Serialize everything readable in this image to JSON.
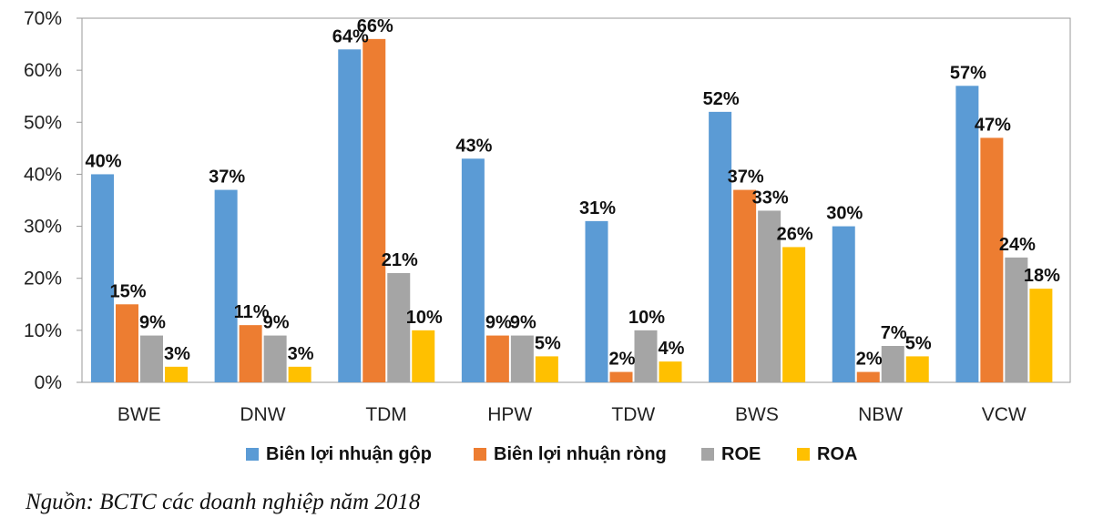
{
  "chart_data": {
    "type": "bar",
    "title": "",
    "xlabel": "",
    "ylabel": "",
    "ylim": [
      0,
      70
    ],
    "y_ticks": [
      "0%",
      "10%",
      "20%",
      "30%",
      "40%",
      "50%",
      "60%",
      "70%"
    ],
    "grid": false,
    "legend_position": "bottom",
    "categories": [
      "BWE",
      "DNW",
      "TDM",
      "HPW",
      "TDW",
      "BWS",
      "NBW",
      "VCW"
    ],
    "series": [
      {
        "name": "Biên lợi nhuận gộp",
        "color": "#5B9BD5",
        "values": [
          40,
          37,
          64,
          43,
          31,
          52,
          30,
          57
        ],
        "labels": [
          "40%",
          "37%",
          "64%",
          "43%",
          "31%",
          "52%",
          "30%",
          "57%"
        ]
      },
      {
        "name": "Biên lợi nhuận ròng",
        "color": "#ED7D31",
        "values": [
          15,
          11,
          66,
          9,
          2,
          37,
          2,
          47
        ],
        "labels": [
          "15%",
          "11%",
          "66%",
          "9%",
          "2%",
          "37%",
          "2%",
          "47%"
        ]
      },
      {
        "name": "ROE",
        "color": "#A5A5A5",
        "values": [
          9,
          9,
          21,
          9,
          10,
          33,
          7,
          24
        ],
        "labels": [
          "9%",
          "9%",
          "21%",
          "9%",
          "10%",
          "33%",
          "7%",
          "24%"
        ]
      },
      {
        "name": "ROA",
        "color": "#FFC000",
        "values": [
          3,
          3,
          10,
          5,
          4,
          26,
          5,
          18
        ],
        "labels": [
          "3%",
          "3%",
          "10%",
          "5%",
          "4%",
          "26%",
          "5%",
          "18%"
        ]
      }
    ]
  },
  "source_note": "Nguồn: BCTC các doanh nghiệp năm 2018"
}
